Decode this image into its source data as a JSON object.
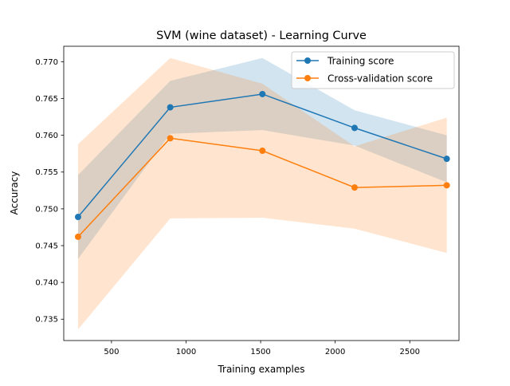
{
  "chart_data": {
    "type": "line",
    "title": "SVM (wine dataset) - Learning Curve",
    "xlabel": "Training examples",
    "ylabel": "Accuracy",
    "xlim": [
      180,
      2830
    ],
    "ylim": [
      0.7321,
      0.7721
    ],
    "xticks": [
      500,
      1000,
      1500,
      2000,
      2500
    ],
    "xtick_labels": [
      "500",
      "1000",
      "1500",
      "2000",
      "2500"
    ],
    "yticks": [
      0.735,
      0.74,
      0.745,
      0.75,
      0.755,
      0.76,
      0.765,
      0.77
    ],
    "ytick_labels": [
      "0.735",
      "0.740",
      "0.745",
      "0.750",
      "0.755",
      "0.760",
      "0.765",
      "0.770"
    ],
    "grid": false,
    "legend_position": "top-right",
    "x": [
      276,
      894,
      1512,
      2130,
      2748
    ],
    "series": [
      {
        "name": "Training score",
        "color": "#1f77b4",
        "values": [
          0.7489,
          0.7638,
          0.7656,
          0.761,
          0.7568
        ],
        "band_lower": [
          0.7432,
          0.7602,
          0.7607,
          0.7586,
          0.7536
        ],
        "band_upper": [
          0.7546,
          0.7674,
          0.7705,
          0.7634,
          0.76
        ]
      },
      {
        "name": "Cross-validation score",
        "color": "#ff7f0e",
        "values": [
          0.7462,
          0.7596,
          0.7579,
          0.7529,
          0.7532
        ],
        "band_lower": [
          0.7336,
          0.7487,
          0.7488,
          0.7473,
          0.744
        ],
        "band_upper": [
          0.7588,
          0.7705,
          0.767,
          0.7585,
          0.7624
        ]
      }
    ]
  }
}
